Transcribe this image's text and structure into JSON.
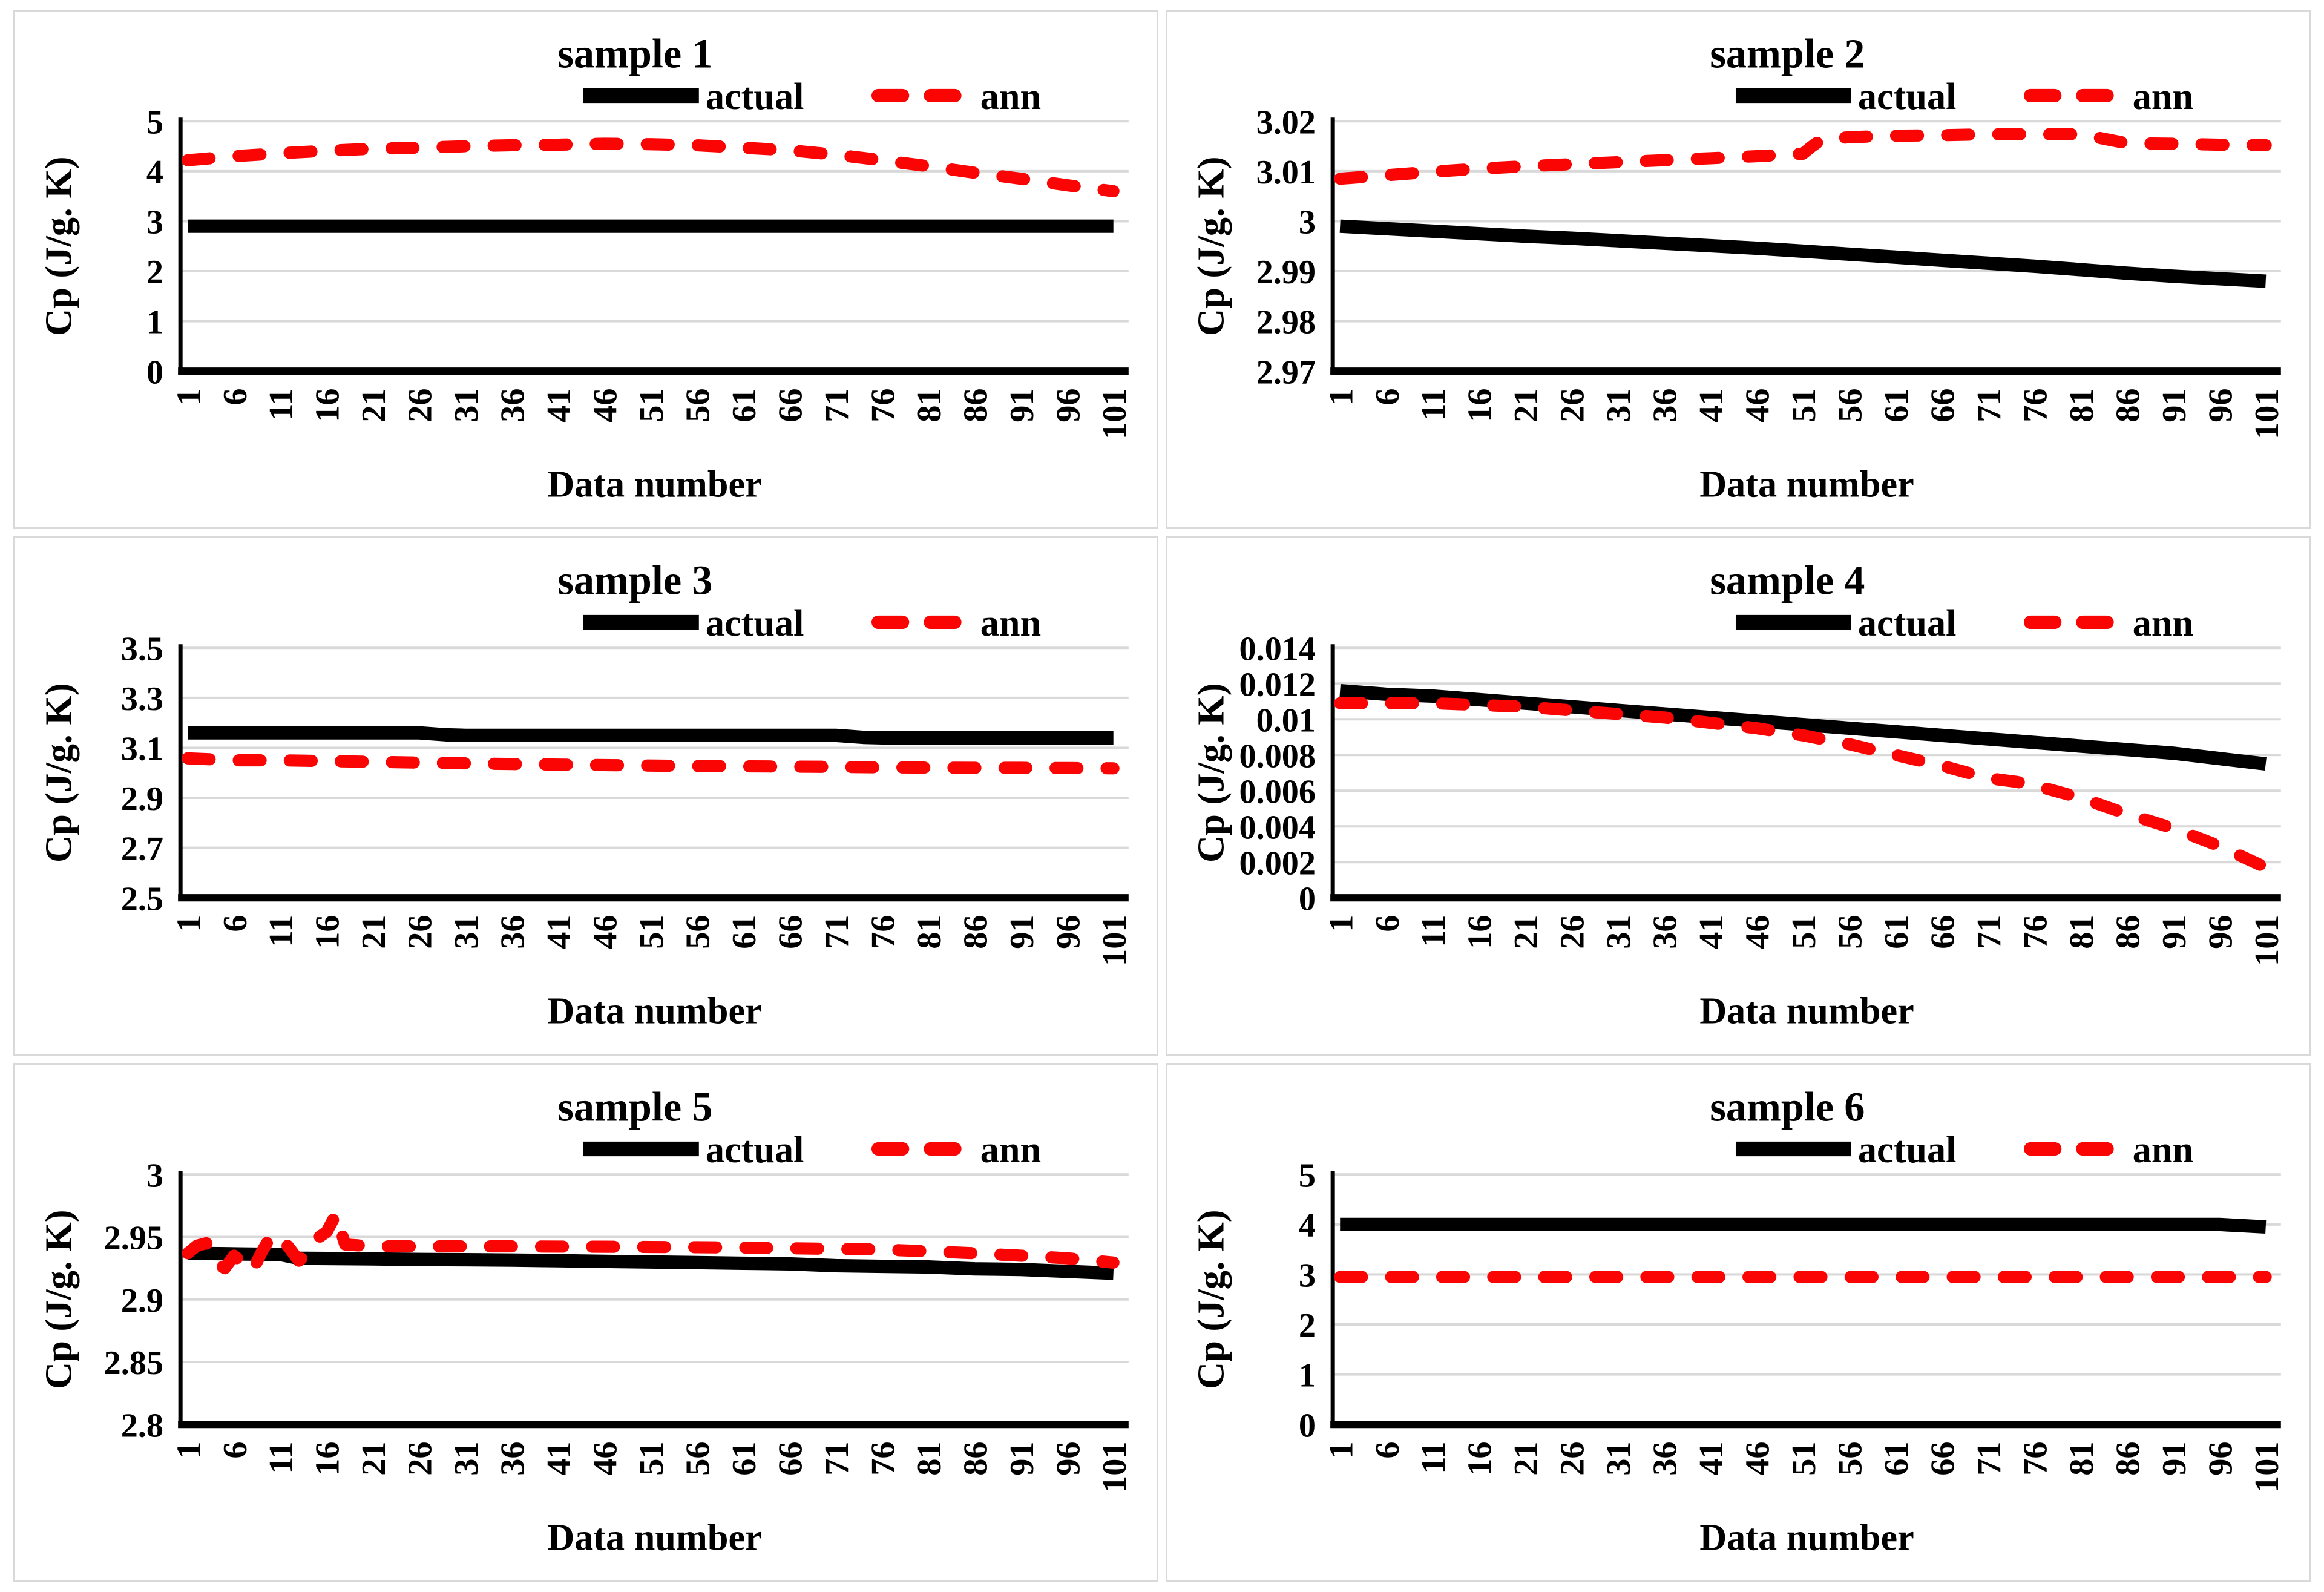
{
  "legend": {
    "actual": "actual",
    "ann": "ann"
  },
  "axis": {
    "xlabel": "Data number",
    "ylabel": "Cp (J/g. K)",
    "xticks": [
      1,
      6,
      11,
      16,
      21,
      26,
      31,
      36,
      41,
      46,
      51,
      56,
      61,
      66,
      71,
      76,
      81,
      86,
      91,
      96,
      101
    ]
  },
  "colors": {
    "actual": "#000000",
    "ann": "#fb0404",
    "grid": "#d9d9d9",
    "axis_line": "#000000",
    "panel_border": "#d9d9d9"
  },
  "chart_data": [
    {
      "type": "line",
      "title": "sample 1",
      "xlabel": "Data number",
      "ylabel": "Cp (J/g. K)",
      "ylim": [
        0,
        5
      ],
      "yticks": [
        "0",
        "1",
        "2",
        "3",
        "4",
        "5"
      ],
      "grid": true,
      "legend_position": "top-right",
      "series": [
        {
          "name": "actual",
          "style": "solid",
          "x": [
            1,
            6,
            11,
            16,
            21,
            26,
            31,
            36,
            41,
            46,
            51,
            56,
            61,
            66,
            71,
            76,
            81,
            86,
            91,
            96,
            101
          ],
          "y": [
            2.9,
            2.9,
            2.9,
            2.9,
            2.9,
            2.9,
            2.9,
            2.9,
            2.9,
            2.9,
            2.9,
            2.9,
            2.9,
            2.9,
            2.9,
            2.9,
            2.9,
            2.9,
            2.9,
            2.9,
            2.9
          ]
        },
        {
          "name": "ann",
          "style": "dashed",
          "x": [
            1,
            6,
            11,
            16,
            21,
            26,
            31,
            36,
            41,
            46,
            51,
            56,
            61,
            66,
            71,
            76,
            81,
            86,
            91,
            96,
            101
          ],
          "y": [
            4.22,
            4.3,
            4.36,
            4.41,
            4.45,
            4.47,
            4.5,
            4.52,
            4.53,
            4.55,
            4.54,
            4.52,
            4.47,
            4.42,
            4.33,
            4.22,
            4.1,
            3.97,
            3.85,
            3.72,
            3.6
          ]
        }
      ]
    },
    {
      "type": "line",
      "title": "sample 2",
      "xlabel": "Data number",
      "ylabel": "Cp (J/g. K)",
      "ylim": [
        2.97,
        3.02
      ],
      "yticks": [
        "2.97",
        "2.98",
        "2.99",
        "3",
        "3.01",
        "3.02"
      ],
      "grid": true,
      "legend_position": "top-right",
      "series": [
        {
          "name": "actual",
          "style": "solid",
          "x": [
            1,
            6,
            11,
            16,
            21,
            26,
            31,
            36,
            41,
            46,
            51,
            56,
            61,
            66,
            71,
            76,
            81,
            86,
            91,
            96,
            101
          ],
          "y": [
            2.999,
            2.9985,
            2.998,
            2.9975,
            2.997,
            2.9966,
            2.9961,
            2.9956,
            2.9951,
            2.9946,
            2.994,
            2.9934,
            2.9928,
            2.9922,
            2.9916,
            2.991,
            2.9903,
            2.9896,
            2.989,
            2.9885,
            2.988
          ]
        },
        {
          "name": "ann",
          "style": "dashed",
          "x": [
            1,
            6,
            11,
            16,
            21,
            26,
            31,
            36,
            41,
            46,
            51,
            52,
            53,
            56,
            61,
            66,
            71,
            76,
            81,
            86,
            91,
            96,
            101
          ],
          "y": [
            3.0085,
            3.0092,
            3.0099,
            3.0105,
            3.011,
            3.0114,
            3.0118,
            3.0122,
            3.0126,
            3.013,
            3.0135,
            3.015,
            3.0163,
            3.0168,
            3.0171,
            3.0172,
            3.0174,
            3.0174,
            3.0174,
            3.0156,
            3.0155,
            3.0153,
            3.0152
          ]
        }
      ]
    },
    {
      "type": "line",
      "title": "sample 3",
      "xlabel": "Data number",
      "ylabel": "Cp (J/g. K)",
      "ylim": [
        2.5,
        3.5
      ],
      "yticks": [
        "2.5",
        "2.7",
        "2.9",
        "3.1",
        "3.3",
        "3.5"
      ],
      "grid": true,
      "legend_position": "top-right",
      "series": [
        {
          "name": "actual",
          "style": "solid",
          "x": [
            1,
            6,
            11,
            16,
            21,
            26,
            29,
            31,
            36,
            41,
            46,
            51,
            56,
            61,
            66,
            71,
            74,
            76,
            81,
            86,
            91,
            96,
            101
          ],
          "y": [
            3.16,
            3.16,
            3.16,
            3.16,
            3.16,
            3.16,
            3.152,
            3.15,
            3.15,
            3.15,
            3.15,
            3.15,
            3.15,
            3.15,
            3.15,
            3.15,
            3.142,
            3.14,
            3.14,
            3.14,
            3.14,
            3.14,
            3.14
          ]
        },
        {
          "name": "ann",
          "style": "dashed",
          "x": [
            1,
            6,
            11,
            16,
            21,
            26,
            31,
            36,
            41,
            46,
            51,
            56,
            61,
            66,
            71,
            76,
            81,
            86,
            91,
            96,
            101
          ],
          "y": [
            3.058,
            3.05,
            3.05,
            3.047,
            3.044,
            3.041,
            3.038,
            3.035,
            3.033,
            3.031,
            3.029,
            3.027,
            3.026,
            3.025,
            3.024,
            3.022,
            3.021,
            3.02,
            3.02,
            3.019,
            3.018
          ]
        }
      ]
    },
    {
      "type": "line",
      "title": "sample 4",
      "xlabel": "Data number",
      "ylabel": "Cp (J/g. K)",
      "ylim": [
        0,
        0.014
      ],
      "yticks": [
        "0",
        "0.002",
        "0.004",
        "0.006",
        "0.008",
        "0.01",
        "0.012",
        "0.014"
      ],
      "grid": true,
      "legend_position": "top-right",
      "series": [
        {
          "name": "actual",
          "style": "solid",
          "x": [
            1,
            6,
            11,
            16,
            21,
            26,
            31,
            36,
            41,
            46,
            51,
            56,
            61,
            66,
            71,
            76,
            81,
            86,
            91,
            96,
            101
          ],
          "y": [
            0.0116,
            0.0114,
            0.0113,
            0.0111,
            0.0109,
            0.0107,
            0.0105,
            0.0103,
            0.0101,
            0.0099,
            0.0097,
            0.0095,
            0.0093,
            0.0091,
            0.0089,
            0.0087,
            0.0085,
            0.0083,
            0.0081,
            0.0078,
            0.0075
          ]
        },
        {
          "name": "ann",
          "style": "dashed",
          "x": [
            1,
            6,
            11,
            16,
            21,
            26,
            31,
            36,
            41,
            46,
            51,
            56,
            61,
            66,
            71,
            74,
            76,
            81,
            86,
            91,
            96,
            101
          ],
          "y": [
            0.0109,
            0.0109,
            0.0109,
            0.0108,
            0.0107,
            0.0105,
            0.0103,
            0.0101,
            0.0098,
            0.0095,
            0.0091,
            0.0086,
            0.008,
            0.0074,
            0.0067,
            0.0065,
            0.0063,
            0.0056,
            0.0047,
            0.0039,
            0.0029,
            0.0017
          ]
        }
      ]
    },
    {
      "type": "line",
      "title": "sample 5",
      "xlabel": "Data number",
      "ylabel": "Cp (J/g. K)",
      "ylim": [
        2.8,
        3.0
      ],
      "yticks": [
        "2.8",
        "2.85",
        "2.9",
        "2.95",
        "3"
      ],
      "grid": true,
      "legend_position": "top-right",
      "series": [
        {
          "name": "actual",
          "style": "solid",
          "x": [
            1,
            6,
            11,
            13,
            16,
            21,
            26,
            31,
            36,
            41,
            46,
            51,
            56,
            61,
            66,
            71,
            76,
            81,
            86,
            91,
            96,
            101
          ],
          "y": [
            2.937,
            2.9365,
            2.936,
            2.933,
            2.9328,
            2.9325,
            2.932,
            2.9318,
            2.9315,
            2.931,
            2.9305,
            2.93,
            2.9295,
            2.929,
            2.9285,
            2.927,
            2.9265,
            2.926,
            2.9245,
            2.924,
            2.9225,
            2.921
          ]
        },
        {
          "name": "ann",
          "style": "dashed",
          "x": [
            1,
            2,
            3,
            4,
            5,
            6,
            7,
            8,
            9,
            10,
            11,
            12,
            13,
            14,
            15,
            16,
            17,
            18,
            21,
            26,
            31,
            36,
            41,
            46,
            51,
            56,
            61,
            66,
            71,
            76,
            81,
            86,
            91,
            96,
            101
          ],
          "y": [
            2.937,
            2.943,
            2.945,
            2.93,
            2.925,
            2.935,
            2.929,
            2.923,
            2.938,
            2.951,
            2.95,
            2.941,
            2.931,
            2.937,
            2.949,
            2.954,
            2.968,
            2.944,
            2.9425,
            2.9425,
            2.9425,
            2.9425,
            2.9423,
            2.9422,
            2.942,
            2.9418,
            2.9415,
            2.941,
            2.9405,
            2.94,
            2.9385,
            2.937,
            2.935,
            2.933,
            2.9295
          ]
        }
      ]
    },
    {
      "type": "line",
      "title": "sample 6",
      "xlabel": "Data number",
      "ylabel": "Cp (J/g. K)",
      "ylim": [
        0,
        5
      ],
      "yticks": [
        "0",
        "1",
        "2",
        "3",
        "4",
        "5"
      ],
      "grid": true,
      "legend_position": "top-right",
      "series": [
        {
          "name": "actual",
          "style": "solid",
          "x": [
            1,
            6,
            11,
            16,
            21,
            26,
            31,
            36,
            41,
            46,
            51,
            56,
            61,
            66,
            71,
            76,
            81,
            86,
            91,
            96,
            101
          ],
          "y": [
            4,
            4,
            4,
            4,
            4,
            4,
            4,
            4,
            4,
            4,
            4,
            4,
            4,
            4,
            4,
            4,
            4,
            4,
            4,
            4,
            3.95
          ]
        },
        {
          "name": "ann",
          "style": "dashed",
          "x": [
            1,
            6,
            11,
            16,
            21,
            26,
            31,
            36,
            41,
            46,
            51,
            56,
            61,
            66,
            71,
            76,
            81,
            86,
            91,
            96,
            101
          ],
          "y": [
            2.95,
            2.95,
            2.95,
            2.95,
            2.95,
            2.95,
            2.95,
            2.95,
            2.95,
            2.95,
            2.95,
            2.95,
            2.95,
            2.95,
            2.95,
            2.95,
            2.95,
            2.95,
            2.95,
            2.95,
            2.95
          ]
        }
      ]
    }
  ]
}
